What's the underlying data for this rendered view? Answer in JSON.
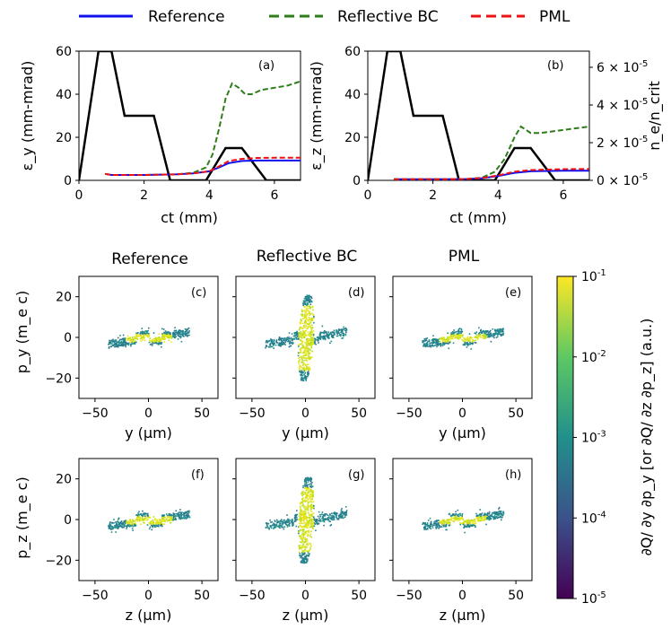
{
  "legend": [
    {
      "name": "Reference",
      "color": "#1010ee",
      "dash": "solid"
    },
    {
      "name": "Reflective BC",
      "color": "#2e7d1a",
      "dash": "dashed"
    },
    {
      "name": "PML",
      "color": "#ee1111",
      "dash": "dashed"
    }
  ],
  "column_titles": [
    "Reference",
    "Reflective BC",
    "PML"
  ],
  "colorbar": {
    "label": "∂Q/ ∂y ∂p_y [or ∂Q/ ∂z ∂p_z] (a.u.)",
    "tick_labels": [
      "10^-1",
      "10^-2",
      "10^-3",
      "10^-4",
      "10^-5"
    ],
    "colormap": [
      "#440154",
      "#3b528b",
      "#21908c",
      "#5dc863",
      "#fde725"
    ],
    "range": [
      1e-05,
      0.1
    ]
  },
  "chart_data": [
    {
      "panel": "(a)",
      "type": "line",
      "xlabel": "ct (mm)",
      "ylabel": "ε_y (mm-mrad)",
      "xlim": [
        0,
        6.8
      ],
      "ylim": [
        0,
        60
      ],
      "xticks": [
        0,
        2,
        4,
        6
      ],
      "yticks": [
        0,
        20,
        40,
        60
      ],
      "series": [
        {
          "name": "Reference",
          "x": [
            0.8,
            1.0,
            2.0,
            3.0,
            3.5,
            4.0,
            4.3,
            4.6,
            5.0,
            5.5,
            6.0,
            6.8
          ],
          "y": [
            3,
            2.5,
            2.5,
            2.8,
            3.2,
            4.2,
            6,
            8,
            9,
            9.2,
            9.2,
            9.2
          ]
        },
        {
          "name": "Reflective BC",
          "x": [
            0.8,
            1.0,
            2.0,
            3.0,
            3.5,
            3.9,
            4.1,
            4.3,
            4.5,
            4.7,
            4.9,
            5.1,
            5.3,
            5.6,
            6.0,
            6.4,
            6.8
          ],
          "y": [
            3,
            2.5,
            2.5,
            2.8,
            3.5,
            6,
            12,
            24,
            38,
            45,
            43,
            40,
            40,
            42,
            43,
            44,
            46
          ]
        },
        {
          "name": "PML",
          "x": [
            0.8,
            1.0,
            2.0,
            3.0,
            3.5,
            4.0,
            4.3,
            4.6,
            5.0,
            5.5,
            6.0,
            6.8
          ],
          "y": [
            3,
            2.5,
            2.5,
            2.8,
            3.2,
            4.2,
            6.5,
            9,
            10,
            10.4,
            10.5,
            10.5
          ]
        }
      ],
      "secondary": {
        "x": [
          0,
          0.6,
          1.0,
          1.4,
          2.3,
          2.8,
          3.9,
          4.5,
          5.0,
          5.75,
          6.8
        ],
        "y": [
          0,
          60,
          60,
          30,
          30,
          0,
          0,
          15,
          15,
          0,
          0
        ]
      }
    },
    {
      "panel": "(b)",
      "type": "line",
      "xlabel": "ct (mm)",
      "ylabel": "ε_z (mm-mrad)",
      "y2label": "n_e/n_crit",
      "xlim": [
        0,
        6.8
      ],
      "ylim": [
        0,
        60
      ],
      "xticks": [
        0,
        2,
        4,
        6
      ],
      "yticks": [
        0,
        20,
        40,
        60
      ],
      "y2ticks": [
        "0 × 10^-5",
        "2 × 10^-5",
        "4 × 10^-5",
        "6 × 10^-5"
      ],
      "series": [
        {
          "name": "Reference",
          "x": [
            0.8,
            1.0,
            2.0,
            3.0,
            3.5,
            4.0,
            4.5,
            5.0,
            6.0,
            6.8
          ],
          "y": [
            0.5,
            0.5,
            0.5,
            0.6,
            1.0,
            2.0,
            3.5,
            4.2,
            4.5,
            4.5
          ]
        },
        {
          "name": "Reflective BC",
          "x": [
            0.8,
            1.0,
            2.0,
            3.0,
            3.5,
            3.9,
            4.2,
            4.5,
            4.7,
            5.0,
            5.3,
            5.8,
            6.3,
            6.8
          ],
          "y": [
            0.5,
            0.5,
            0.5,
            0.6,
            1.2,
            4,
            10,
            20,
            25,
            22,
            22,
            23,
            24,
            25
          ]
        },
        {
          "name": "PML",
          "x": [
            0.8,
            1.0,
            2.0,
            3.0,
            3.5,
            4.0,
            4.5,
            5.0,
            6.0,
            6.8
          ],
          "y": [
            0.5,
            0.5,
            0.5,
            0.6,
            1.1,
            2.3,
            4.0,
            4.8,
            5.2,
            5.3
          ]
        }
      ],
      "secondary": {
        "x": [
          0,
          0.6,
          1.0,
          1.4,
          2.3,
          2.8,
          3.9,
          4.5,
          5.0,
          5.75,
          6.8
        ],
        "y": [
          0,
          60,
          60,
          30,
          30,
          0,
          0,
          15,
          15,
          0,
          0
        ]
      }
    },
    {
      "panel": "(c)",
      "type": "heatmap",
      "xlabel": "y (μm)",
      "ylabel": "p_y (m_e c)",
      "xlim": [
        -65,
        65
      ],
      "ylim": [
        -30,
        30
      ],
      "xticks": [
        -50,
        0,
        50
      ],
      "yticks": [
        -20,
        0,
        20
      ],
      "shape": "weak"
    },
    {
      "panel": "(d)",
      "type": "heatmap",
      "xlabel": "y (μm)",
      "ylabel": "",
      "xlim": [
        -65,
        65
      ],
      "ylim": [
        -30,
        30
      ],
      "xticks": [
        -50,
        0,
        50
      ],
      "yticks": [
        -20,
        0,
        20
      ],
      "shape": "strong"
    },
    {
      "panel": "(e)",
      "type": "heatmap",
      "xlabel": "y (μm)",
      "ylabel": "",
      "xlim": [
        -65,
        65
      ],
      "ylim": [
        -30,
        30
      ],
      "xticks": [
        -50,
        0,
        50
      ],
      "yticks": [
        -20,
        0,
        20
      ],
      "shape": "weak"
    },
    {
      "panel": "(f)",
      "type": "heatmap",
      "xlabel": "z (μm)",
      "ylabel": "p_z (m_e c)",
      "xlim": [
        -65,
        65
      ],
      "ylim": [
        -30,
        30
      ],
      "xticks": [
        -50,
        0,
        50
      ],
      "yticks": [
        -20,
        0,
        20
      ],
      "shape": "weak"
    },
    {
      "panel": "(g)",
      "type": "heatmap",
      "xlabel": "z (μm)",
      "ylabel": "",
      "xlim": [
        -65,
        65
      ],
      "ylim": [
        -30,
        30
      ],
      "xticks": [
        -50,
        0,
        50
      ],
      "yticks": [
        -20,
        0,
        20
      ],
      "shape": "strong"
    },
    {
      "panel": "(h)",
      "type": "heatmap",
      "xlabel": "z (μm)",
      "ylabel": "",
      "xlim": [
        -65,
        65
      ],
      "ylim": [
        -30,
        30
      ],
      "xticks": [
        -50,
        0,
        50
      ],
      "yticks": [
        -20,
        0,
        20
      ],
      "shape": "weak"
    }
  ]
}
